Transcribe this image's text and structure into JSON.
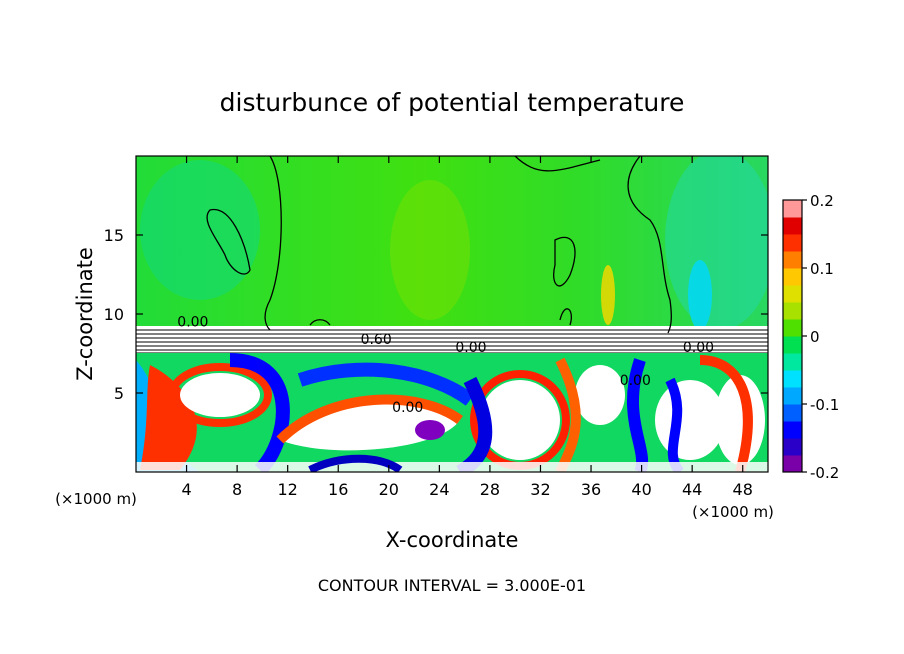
{
  "chart_data": {
    "type": "heatmap",
    "title": "disturbunce of potential temperature",
    "xlabel": "X-coordinate",
    "ylabel": "Z-coordinate",
    "x_unit_left": "(×1000 m)",
    "x_unit_right": "(×1000 m)",
    "xlim": [
      0,
      50
    ],
    "ylim": [
      0,
      20
    ],
    "x_ticks": [
      {
        "value": 4,
        "label": "4"
      },
      {
        "value": 8,
        "label": "8"
      },
      {
        "value": 12,
        "label": "12"
      },
      {
        "value": 16,
        "label": "16"
      },
      {
        "value": 20,
        "label": "20"
      },
      {
        "value": 24,
        "label": "24"
      },
      {
        "value": 28,
        "label": "28"
      },
      {
        "value": 32,
        "label": "32"
      },
      {
        "value": 36,
        "label": "36"
      },
      {
        "value": 40,
        "label": "40"
      },
      {
        "value": 44,
        "label": "44"
      },
      {
        "value": 48,
        "label": "48"
      }
    ],
    "y_ticks": [
      {
        "value": 5,
        "label": "5"
      },
      {
        "value": 10,
        "label": "10"
      },
      {
        "value": 15,
        "label": "15"
      }
    ],
    "colorbar": {
      "min": -0.2,
      "max": 0.2,
      "ticks": [
        {
          "value": 0.2,
          "label": "0.2"
        },
        {
          "value": 0.1,
          "label": "0.1"
        },
        {
          "value": 0,
          "label": "0"
        },
        {
          "value": -0.1,
          "label": "-0.1"
        },
        {
          "value": -0.2,
          "label": "-0.2"
        }
      ],
      "colors": [
        "#7a00a8",
        "#2a00c8",
        "#0000ff",
        "#0060ff",
        "#00a8ff",
        "#00e0ff",
        "#00e8a0",
        "#00e050",
        "#50e000",
        "#a8e000",
        "#e0e000",
        "#ffc800",
        "#ff8000",
        "#ff3000",
        "#e00000",
        "#ff9898"
      ]
    },
    "contour_labels": [
      {
        "text": "0.00",
        "x": 4.5,
        "y": 9.2
      },
      {
        "text": "0.60",
        "x": 19,
        "y": 8.1
      },
      {
        "text": "0.00",
        "x": 26.5,
        "y": 7.6
      },
      {
        "text": "0.00",
        "x": 44.5,
        "y": 7.6
      },
      {
        "text": "0.00",
        "x": 21.5,
        "y": 3.8
      },
      {
        "text": "0.00",
        "x": 39.5,
        "y": 5.5
      }
    ],
    "contour_interval_text": "CONTOUR INTERVAL = 3.000E-01"
  }
}
